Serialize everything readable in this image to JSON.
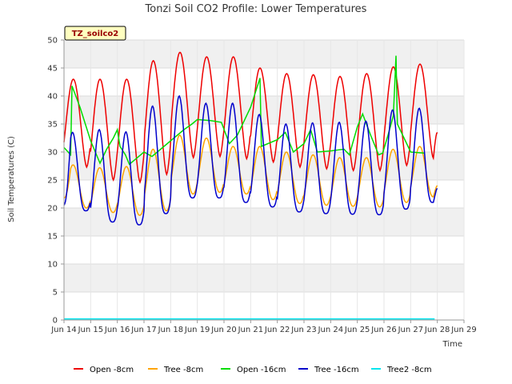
{
  "chart_data": {
    "type": "line",
    "title": "Tonzi Soil CO2 Profile: Lower Temperatures",
    "xlabel": "Time",
    "ylabel": "Soil Temperatures (C)",
    "site_label": "TZ_soilco2",
    "x_ticks": [
      "Jun 14",
      "Jun 15",
      "Jun 16",
      "Jun 17",
      "Jun 18",
      "Jun 19",
      "Jun 20",
      "Jun 21",
      "Jun 22",
      "Jun 23",
      "Jun 24",
      "Jun 25",
      "Jun 26",
      "Jun 27",
      "Jun 28",
      "Jun 29"
    ],
    "y_ticks": [
      0,
      5,
      10,
      15,
      20,
      25,
      30,
      35,
      40,
      45,
      50
    ],
    "xlim": [
      14,
      29
    ],
    "ylim": [
      0,
      50
    ],
    "grid": true,
    "legend_position": "bottom",
    "series": [
      {
        "name": "Open -8cm",
        "color": "#ee0000",
        "daily": [
          {
            "min": 27.3,
            "max": 43.0
          },
          {
            "min": 25.0,
            "max": 43.0
          },
          {
            "min": 24.6,
            "max": 43.0
          },
          {
            "min": 26.0,
            "max": 46.3
          },
          {
            "min": 29.0,
            "max": 47.8
          },
          {
            "min": 29.2,
            "max": 47.0
          },
          {
            "min": 28.8,
            "max": 47.0
          },
          {
            "min": 28.2,
            "max": 45.0
          },
          {
            "min": 27.3,
            "max": 44.0
          },
          {
            "min": 27.0,
            "max": 43.8
          },
          {
            "min": 26.7,
            "max": 43.5
          },
          {
            "min": 26.7,
            "max": 44.0
          },
          {
            "min": 27.6,
            "max": 45.2
          },
          {
            "min": 28.9,
            "max": 45.7
          }
        ],
        "end": 33.5
      },
      {
        "name": "Tree -8cm",
        "color": "#ffa500",
        "daily": [
          {
            "min": 20.0,
            "max": 27.7
          },
          {
            "min": 19.2,
            "max": 27.2
          },
          {
            "min": 18.7,
            "max": 27.4
          },
          {
            "min": 19.5,
            "max": 30.5
          },
          {
            "min": 22.5,
            "max": 33.0
          },
          {
            "min": 22.8,
            "max": 32.5
          },
          {
            "min": 22.5,
            "max": 31.0
          },
          {
            "min": 21.5,
            "max": 31.0
          },
          {
            "min": 20.8,
            "max": 30.0
          },
          {
            "min": 20.5,
            "max": 29.5
          },
          {
            "min": 20.3,
            "max": 29.0
          },
          {
            "min": 20.2,
            "max": 29.0
          },
          {
            "min": 21.0,
            "max": 30.5
          },
          {
            "min": 22.0,
            "max": 31.0
          }
        ],
        "start": 21.8,
        "end": 24.0
      },
      {
        "name": "Open -16cm",
        "color": "#00dd00",
        "points": [
          [
            14.0,
            30.8
          ],
          [
            14.25,
            29.5
          ],
          [
            14.3,
            41.8
          ],
          [
            14.6,
            38.0
          ],
          [
            15.0,
            32.0
          ],
          [
            15.35,
            28.0
          ],
          [
            15.6,
            30.5
          ],
          [
            15.85,
            32.5
          ],
          [
            16.0,
            34.0
          ],
          [
            16.1,
            31.0
          ],
          [
            16.3,
            29.5
          ],
          [
            16.45,
            27.8
          ],
          [
            17.0,
            30.0
          ],
          [
            17.3,
            29.2
          ],
          [
            18.0,
            32.0
          ],
          [
            18.5,
            34.0
          ],
          [
            18.8,
            35.0
          ],
          [
            19.0,
            35.8
          ],
          [
            19.5,
            35.6
          ],
          [
            19.9,
            35.3
          ],
          [
            20.2,
            31.5
          ],
          [
            20.5,
            33.0
          ],
          [
            21.0,
            38.0
          ],
          [
            21.35,
            43.2
          ],
          [
            21.4,
            31.0
          ],
          [
            22.0,
            32.2
          ],
          [
            22.3,
            33.5
          ],
          [
            22.6,
            30.0
          ],
          [
            23.0,
            31.5
          ],
          [
            23.25,
            34.0
          ],
          [
            23.5,
            30.0
          ],
          [
            24.0,
            30.2
          ],
          [
            24.5,
            30.5
          ],
          [
            24.7,
            29.5
          ],
          [
            25.0,
            34.5
          ],
          [
            25.2,
            36.8
          ],
          [
            25.5,
            33.0
          ],
          [
            25.8,
            29.5
          ],
          [
            25.95,
            29.8
          ],
          [
            26.15,
            33.0
          ],
          [
            26.35,
            36.5
          ],
          [
            26.45,
            47.2
          ],
          [
            26.5,
            35.0
          ],
          [
            26.8,
            32.0
          ],
          [
            27.0,
            30.0
          ],
          [
            27.5,
            29.8
          ]
        ]
      },
      {
        "name": "Tree -16cm",
        "color": "#0000cc",
        "daily": [
          {
            "min": 19.5,
            "max": 33.5
          },
          {
            "min": 17.5,
            "max": 34.0
          },
          {
            "min": 17.0,
            "max": 33.6
          },
          {
            "min": 19.0,
            "max": 38.2
          },
          {
            "min": 21.8,
            "max": 40.0
          },
          {
            "min": 21.8,
            "max": 38.7
          },
          {
            "min": 21.0,
            "max": 38.7
          },
          {
            "min": 20.2,
            "max": 36.7
          },
          {
            "min": 19.3,
            "max": 35.0
          },
          {
            "min": 19.0,
            "max": 35.2
          },
          {
            "min": 18.9,
            "max": 35.3
          },
          {
            "min": 18.8,
            "max": 35.5
          },
          {
            "min": 19.8,
            "max": 37.5
          },
          {
            "min": 21.0,
            "max": 37.8
          }
        ],
        "start": 20.5,
        "end": 23.5
      },
      {
        "name": "Tree2 -8cm",
        "color": "#00e5ee",
        "constant": 0.2
      }
    ]
  }
}
